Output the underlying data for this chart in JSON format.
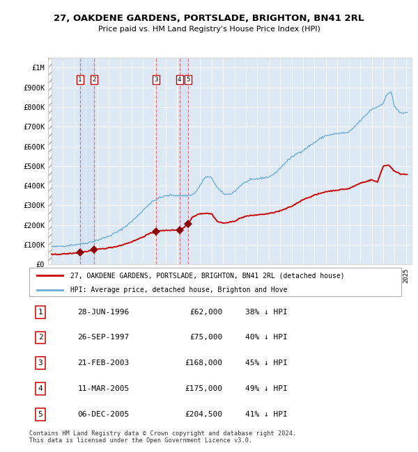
{
  "title": "27, OAKDENE GARDENS, PORTSLADE, BRIGHTON, BN41 2RL",
  "subtitle": "Price paid vs. HM Land Registry's House Price Index (HPI)",
  "sale_dates_frac": [
    1996.496,
    1997.745,
    2003.138,
    2005.193,
    2005.923
  ],
  "sale_prices": [
    62000,
    75000,
    168000,
    175000,
    204500
  ],
  "sale_labels": [
    "1",
    "2",
    "3",
    "4",
    "5"
  ],
  "table_data": [
    [
      "1",
      "28-JUN-1996",
      "£62,000",
      "38% ↓ HPI"
    ],
    [
      "2",
      "26-SEP-1997",
      "£75,000",
      "40% ↓ HPI"
    ],
    [
      "3",
      "21-FEB-2003",
      "£168,000",
      "45% ↓ HPI"
    ],
    [
      "4",
      "11-MAR-2005",
      "£175,000",
      "49% ↓ HPI"
    ],
    [
      "5",
      "06-DEC-2005",
      "£204,500",
      "41% ↓ HPI"
    ]
  ],
  "hpi_label": "HPI: Average price, detached house, Brighton and Hove",
  "price_label": "27, OAKDENE GARDENS, PORTSLADE, BRIGHTON, BN41 2RL (detached house)",
  "footer": "Contains HM Land Registry data © Crown copyright and database right 2024.\nThis data is licensed under the Open Government Licence v3.0.",
  "hpi_color": "#6baed6",
  "price_color": "#cc0000",
  "marker_color": "#8b0000",
  "dashed_line_color": "#e06060",
  "ylim": [
    0,
    1050000
  ],
  "yticks": [
    0,
    100000,
    200000,
    300000,
    400000,
    500000,
    600000,
    700000,
    800000,
    900000,
    1000000
  ],
  "ytick_labels": [
    "£0",
    "£100K",
    "£200K",
    "£300K",
    "£400K",
    "£500K",
    "£600K",
    "£700K",
    "£800K",
    "£900K",
    "£1M"
  ],
  "xlim": [
    1993.7,
    2025.5
  ],
  "hpi_anchors_x": [
    1994.0,
    1994.5,
    1995.0,
    1995.5,
    1996.0,
    1996.5,
    1997.0,
    1997.5,
    1998.0,
    1998.5,
    1999.0,
    1999.5,
    2000.0,
    2000.5,
    2001.0,
    2001.5,
    2002.0,
    2002.5,
    2003.0,
    2003.5,
    2004.0,
    2004.5,
    2005.0,
    2005.5,
    2006.0,
    2006.5,
    2007.0,
    2007.3,
    2007.6,
    2008.0,
    2008.5,
    2009.0,
    2009.5,
    2010.0,
    2010.5,
    2011.0,
    2011.5,
    2012.0,
    2012.5,
    2013.0,
    2013.5,
    2014.0,
    2014.5,
    2015.0,
    2015.5,
    2016.0,
    2016.5,
    2017.0,
    2017.5,
    2018.0,
    2018.5,
    2019.0,
    2019.5,
    2020.0,
    2020.5,
    2021.0,
    2021.5,
    2022.0,
    2022.5,
    2023.0,
    2023.3,
    2023.7,
    2024.0,
    2024.5,
    2025.0
  ],
  "hpi_anchors_y": [
    90000,
    91000,
    94000,
    97000,
    100000,
    104000,
    108000,
    115000,
    123000,
    133000,
    143000,
    158000,
    173000,
    195000,
    218000,
    245000,
    275000,
    305000,
    325000,
    340000,
    348000,
    352000,
    350000,
    350000,
    350000,
    360000,
    400000,
    435000,
    445000,
    440000,
    390000,
    360000,
    355000,
    370000,
    400000,
    420000,
    430000,
    435000,
    440000,
    445000,
    460000,
    490000,
    520000,
    545000,
    565000,
    580000,
    600000,
    620000,
    640000,
    655000,
    660000,
    665000,
    668000,
    670000,
    700000,
    730000,
    760000,
    790000,
    800000,
    820000,
    860000,
    880000,
    800000,
    770000,
    770000
  ],
  "price_anchors_x": [
    1994.0,
    1995.0,
    1996.0,
    1996.5,
    1997.0,
    1997.75,
    1998.0,
    1998.5,
    1999.0,
    1999.5,
    2000.0,
    2000.5,
    2001.0,
    2001.5,
    2002.0,
    2002.5,
    2003.0,
    2003.17,
    2003.5,
    2004.0,
    2004.5,
    2005.0,
    2005.17,
    2005.5,
    2005.92,
    2006.3,
    2006.8,
    2007.0,
    2007.5,
    2008.0,
    2008.5,
    2009.0,
    2009.5,
    2010.0,
    2010.5,
    2011.0,
    2012.0,
    2013.0,
    2014.0,
    2015.0,
    2016.0,
    2017.0,
    2018.0,
    2019.0,
    2020.0,
    2021.0,
    2022.0,
    2022.5,
    2023.0,
    2023.5,
    2024.0,
    2024.5,
    2025.0
  ],
  "price_anchors_y": [
    50000,
    53000,
    57000,
    62000,
    65000,
    75000,
    77000,
    80000,
    84000,
    89000,
    96000,
    105000,
    115000,
    127000,
    140000,
    155000,
    163000,
    168000,
    170000,
    173000,
    174000,
    175000,
    175000,
    185000,
    204500,
    240000,
    255000,
    258000,
    260000,
    257000,
    218000,
    210000,
    213000,
    220000,
    235000,
    245000,
    252000,
    258000,
    272000,
    295000,
    330000,
    352000,
    370000,
    378000,
    385000,
    413000,
    430000,
    418000,
    500000,
    505000,
    473000,
    460000,
    458000
  ]
}
